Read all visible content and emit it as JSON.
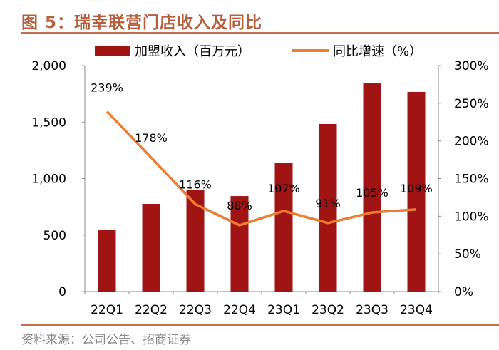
{
  "title": "图 5：瑞幸联营门店收入及同比",
  "source": "资料来源：公司公告、招商证券",
  "colors": {
    "bar": "#a01414",
    "line": "#ed7d31",
    "title": "#b5603d"
  },
  "chart_data": {
    "type": "bar+line",
    "categories": [
      "22Q1",
      "22Q2",
      "22Q3",
      "22Q4",
      "23Q1",
      "23Q2",
      "23Q3",
      "23Q4"
    ],
    "series": [
      {
        "name": "加盟收入（百万元）",
        "type": "bar",
        "axis": "left",
        "values": [
          549,
          776,
          896,
          845,
          1136,
          1483,
          1842,
          1767
        ]
      },
      {
        "name": "同比增速（%）",
        "type": "line",
        "axis": "right",
        "values": [
          239,
          178,
          116,
          88,
          107,
          91,
          105,
          109
        ],
        "labels": [
          "239%",
          "178%",
          "116%",
          "88%",
          "107%",
          "91%",
          "105%",
          "109%"
        ]
      }
    ],
    "y_left": {
      "range": [
        0,
        2000
      ],
      "ticks": [
        "0",
        "500",
        "1,000",
        "1,500",
        "2,000"
      ]
    },
    "y_right": {
      "range": [
        0,
        300
      ],
      "ticks": [
        "0%",
        "50%",
        "100%",
        "150%",
        "200%",
        "250%",
        "300%"
      ]
    },
    "legend": "top",
    "grid": false
  }
}
